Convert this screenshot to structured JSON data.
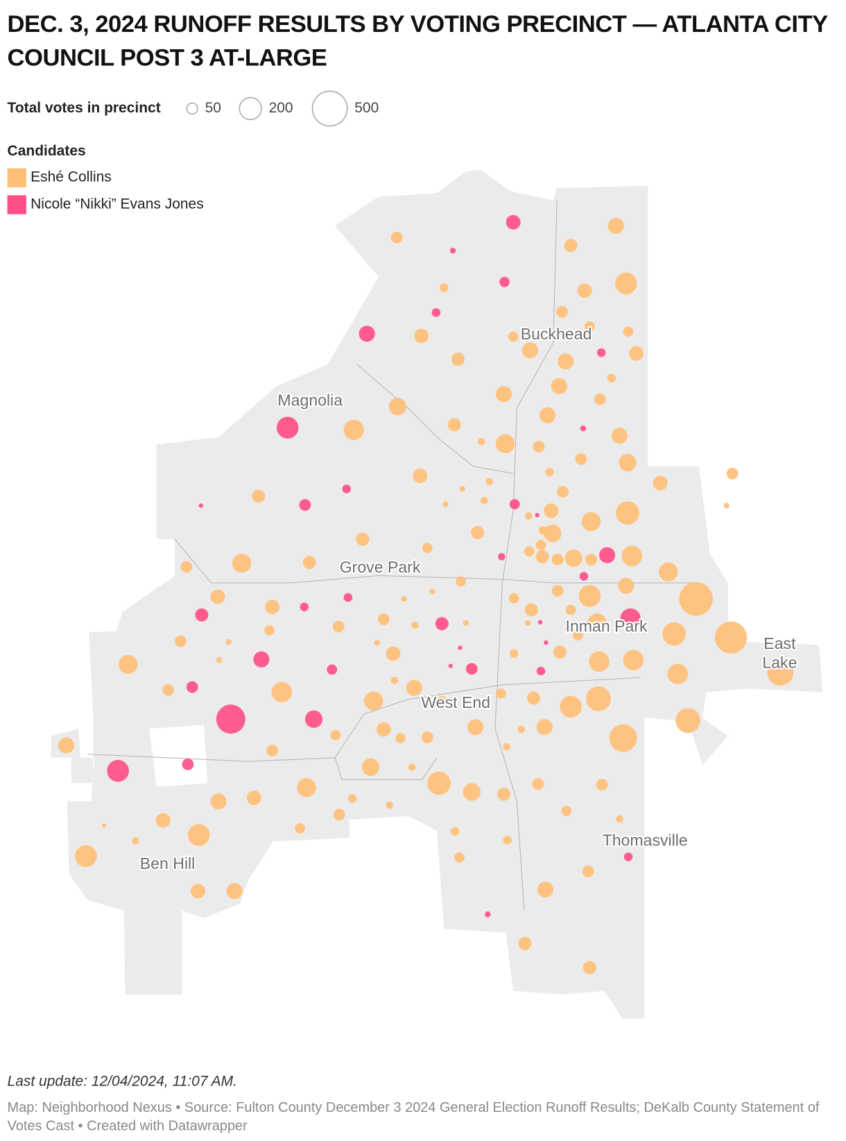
{
  "chart_data": {
    "type": "bubble-map",
    "title": "DEC. 3, 2024 RUNOFF RESULTS BY VOTING PRECINCT — ATLANTA CITY COUNCIL POST 3 AT-LARGE",
    "size_legend": {
      "title": "Total votes in precinct",
      "values": [
        50,
        200,
        500
      ]
    },
    "legend_title": "Candidates",
    "series": [
      {
        "name": "Eshé Collins",
        "color": "#ffbf76",
        "values": [
          56,
          71,
          106,
          197,
          87,
          31,
          56,
          43,
          43,
          87,
          87,
          43,
          106,
          106,
          71,
          31,
          106,
          106,
          56,
          126,
          171,
          106,
          71,
          106,
          22,
          148,
          56,
          56,
          126,
          87,
          31,
          22,
          87,
          56,
          14,
          56,
          71,
          22,
          14,
          87,
          14,
          148,
          224,
          22,
          31,
          126,
          71,
          71,
          43,
          43,
          43,
          71,
          56,
          126,
          56,
          171,
          148,
          56,
          71,
          148,
          106,
          462,
          56,
          197,
          43,
          14,
          43,
          87,
          87,
          71,
          43,
          14,
          56,
          56,
          22,
          14,
          43,
          14,
          148,
          224,
          423,
          56,
          14,
          43,
          14,
          87,
          31,
          71,
          14,
          148,
          171,
          171,
          283,
          171,
          22,
          106,
          56,
          43,
          171,
          148,
          71,
          197,
          252,
          31,
          252,
          106,
          106,
          22,
          87,
          43,
          43,
          56,
          315,
          106,
          22,
          56,
          126,
          22,
          224,
          148,
          126,
          56,
          56,
          87,
          71,
          31,
          106,
          22,
          43,
          56,
          87,
          22,
          43,
          8,
          197,
          31,
          22,
          31,
          197,
          43,
          56,
          87,
          106,
          106,
          71,
          71
        ]
      },
      {
        "name": "Nicole “Nikki” Evans Jones",
        "color": "#ff4f87",
        "values": [
          87,
          14,
          43,
          31,
          106,
          31,
          197,
          14,
          31,
          56,
          8,
          43,
          8,
          22,
          106,
          31,
          31,
          31,
          171,
          71,
          71,
          8,
          106,
          8,
          8,
          43,
          8,
          56,
          31,
          56,
          349,
          126,
          56,
          197,
          31,
          14
        ]
      }
    ],
    "places": [
      {
        "lines": [
          "Buckhead"
        ]
      },
      {
        "lines": [
          "Magnolia"
        ]
      },
      {
        "lines": [
          "Grove Park"
        ]
      },
      {
        "lines": [
          "Inman Park"
        ]
      },
      {
        "lines": [
          "East",
          "Lake"
        ]
      },
      {
        "lines": [
          "West End"
        ]
      },
      {
        "lines": [
          "Thomasville"
        ]
      },
      {
        "lines": [
          "Ben Hill"
        ]
      }
    ],
    "last_update": "Last update: 12/04/2024, 11:07 AM.",
    "source": "Map: Neighborhood Nexus • Source: Fulton County December 3 2024 General Election Runoff Results; DeKalb County Statement of Votes Cast • Created with Datawrapper"
  }
}
